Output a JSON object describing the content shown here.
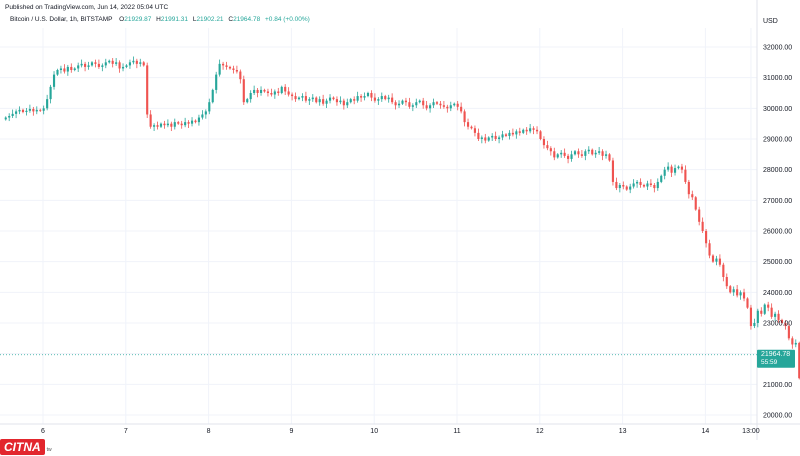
{
  "header": {
    "published": "Published on TradingView.com, Jun 14, 2022 05:04 UTC",
    "symbol": "Bitcoin / U.S. Dollar, 1h, BITSTAMP",
    "ohlc": {
      "o_label": "O",
      "o": "21929.87",
      "h_label": "H",
      "h": "21991.31",
      "l_label": "L",
      "l": "21902.21",
      "c_label": "C",
      "c": "21964.78",
      "change": "+0.84 (+0.00%)"
    }
  },
  "axis": {
    "currency": "USD",
    "price_label": "21964.78",
    "countdown": "55:59"
  },
  "colors": {
    "up": "#26a69a",
    "down": "#ef5350",
    "grid": "#f0f3fa",
    "price_line": "#26a69a"
  },
  "watermark": {
    "brand": "CITNA",
    "sub": "tw"
  },
  "chart_data": {
    "type": "candlestick",
    "ylim": [
      20000,
      32500
    ],
    "yticks": [
      "32000.00",
      "31000.00",
      "30000.00",
      "29000.00",
      "28000.00",
      "27000.00",
      "26000.00",
      "25000.00",
      "24000.00",
      "23000.00",
      "22000.00",
      "21000.00",
      "20000.00"
    ],
    "ytick_values": [
      32000,
      31000,
      30000,
      29000,
      28000,
      27000,
      26000,
      25000,
      24000,
      23000,
      22000,
      21000,
      20000
    ],
    "xlim": [
      -6.5,
      8.5
    ],
    "xticks": [
      "6",
      "7",
      "8",
      "9",
      "10",
      "11",
      "12",
      "13",
      "14",
      "13:00"
    ],
    "xtick_values": [
      0,
      1,
      2,
      3,
      4,
      5,
      6,
      7,
      8,
      8.55
    ],
    "last_price": 21964.78,
    "candles_per_day": 24,
    "first_candle_day": -0.45,
    "close": [
      29700,
      29750,
      29820,
      29900,
      29950,
      29880,
      29920,
      29980,
      29900,
      29950,
      29920,
      30000,
      30300,
      30700,
      31100,
      31250,
      31300,
      31200,
      31350,
      31250,
      31300,
      31400,
      31450,
      31350,
      31400,
      31500,
      31450,
      31350,
      31400,
      31500,
      31550,
      31450,
      31500,
      31300,
      31350,
      31400,
      31500,
      31550,
      31450,
      31500,
      31400,
      29800,
      29400,
      29450,
      29400,
      29500,
      29450,
      29500,
      29400,
      29550,
      29500,
      29450,
      29550,
      29500,
      29600,
      29550,
      29700,
      29800,
      29900,
      30200,
      30600,
      31100,
      31450,
      31400,
      31350,
      31300,
      31250,
      31200,
      30950,
      30200,
      30300,
      30500,
      30600,
      30500,
      30600,
      30550,
      30500,
      30450,
      30550,
      30500,
      30700,
      30550,
      30450,
      30400,
      30300,
      30350,
      30400,
      30250,
      30300,
      30350,
      30200,
      30300,
      30150,
      30250,
      30350,
      30300,
      30200,
      30250,
      30100,
      30200,
      30300,
      30250,
      30400,
      30350,
      30400,
      30500,
      30350,
      30250,
      30300,
      30400,
      30300,
      30350,
      30200,
      30100,
      30150,
      30250,
      30200,
      30050,
      30100,
      30200,
      30250,
      30100,
      30000,
      30100,
      30200,
      30150,
      30100,
      30050,
      30000,
      30100,
      30150,
      30050,
      29900,
      29550,
      29400,
      29350,
      29200,
      29000,
      29050,
      28950,
      29050,
      29100,
      29000,
      29050,
      29150,
      29100,
      29200,
      29150,
      29250,
      29200,
      29300,
      29250,
      29350,
      29300,
      29250,
      29000,
      28800,
      28700,
      28600,
      28400,
      28500,
      28550,
      28450,
      28350,
      28500,
      28600,
      28500,
      28450,
      28600,
      28650,
      28500,
      28550,
      28600,
      28450,
      28500,
      28300,
      27600,
      27400,
      27500,
      27450,
      27350,
      27450,
      27550,
      27600,
      27500,
      27450,
      27550,
      27500,
      27400,
      27600,
      27800,
      28000,
      28100,
      27900,
      28050,
      28100,
      28000,
      27600,
      27200,
      27100,
      26700,
      26300,
      26000,
      25600,
      25200,
      25000,
      25100,
      24900,
      24500,
      24200,
      24000,
      24100,
      23900,
      24000,
      23800,
      23500,
      22900,
      23000,
      23400,
      23300,
      23600,
      23500,
      23200,
      23300,
      23100,
      23000,
      22900,
      22500,
      22300,
      22350,
      21200,
      21000,
      21500,
      21850,
      21950,
      21964.78
    ],
    "x_axis": "date (June 2022), hourly candles"
  }
}
